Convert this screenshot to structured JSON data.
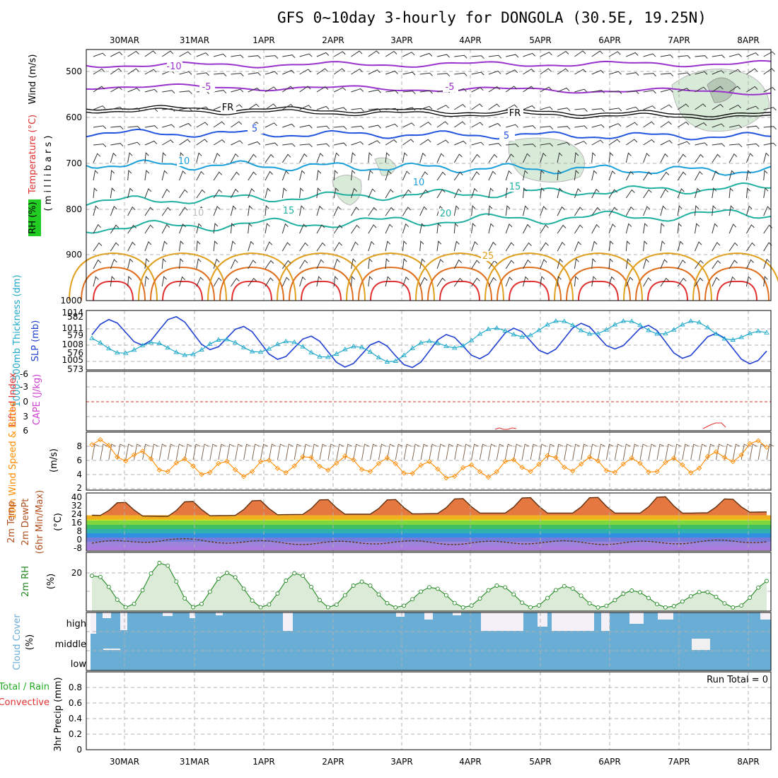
{
  "title": "GFS 0~10day 3-hourly for DONGOLA (30.5E, 19.25N)",
  "dates": [
    "30MAR",
    "31MAR",
    "1APR",
    "2APR",
    "3APR",
    "4APR",
    "5APR",
    "6APR",
    "7APR",
    "8APR"
  ],
  "colors": {
    "wind_label": "#e03030",
    "temp_label": "#e03030",
    "rh_box": "#22cc22",
    "thickness": "#22aacc",
    "slp": "#2040d0",
    "cape": "#d040d0",
    "lifted": "#e03030",
    "wind10_label": "#ff8c00",
    "temp2m": "#b05020",
    "rh2m": "#228822",
    "cloud": "#6aaed6",
    "precip_total": "#22aa22",
    "precip_conv": "#e03030"
  },
  "panels": {
    "upper": {
      "ylabel_wind": "Wind (m/s)",
      "ylabel_temp": "Temperature (°C)",
      "ylabel_rh": "RH (%)",
      "ylabel_pres": "( m i l l i b a r s )",
      "yticks": [
        "500",
        "600",
        "700",
        "800",
        "900",
        "1000"
      ],
      "contour_labels": [
        {
          "text": "-10",
          "color": "#9933cc"
        },
        {
          "text": "-5",
          "color": "#9933cc"
        },
        {
          "text": "-5",
          "color": "#9933cc"
        },
        {
          "text": "FR",
          "color": "#000000"
        },
        {
          "text": "FR",
          "color": "#000000"
        },
        {
          "text": "5",
          "color": "#2255dd"
        },
        {
          "text": "5",
          "color": "#2255dd"
        },
        {
          "text": "10",
          "color": "#1aa0d8"
        },
        {
          "text": "10",
          "color": "#1aa0d8"
        },
        {
          "text": "15",
          "color": "#20b0a0"
        },
        {
          "text": "15",
          "color": "#20b0a0"
        },
        {
          "text": "20",
          "color": "#20b0a0"
        },
        {
          "text": "25",
          "color": "#e0a020"
        },
        {
          "text": "10",
          "color": "#bbbbbb"
        }
      ]
    },
    "thickness": {
      "ylabel_thk": "1000-500mb Thickness (dm)",
      "ylabel_slp": "SLP (mb)",
      "yticks_thk": [
        "582",
        "579",
        "576",
        "573"
      ],
      "yticks_slp": [
        "1014",
        "1011",
        "1008",
        "1005"
      ]
    },
    "cape": {
      "ylabel_li": "Lifted Index",
      "ylabel_cape": "CAPE (J/kg)",
      "yticks": [
        "-6",
        "-3",
        "0",
        "3",
        "6"
      ]
    },
    "wind10": {
      "ylabel": "10m Wind Speed & Barbs",
      "yunit": "(m/s)",
      "yticks": [
        "8",
        "6",
        "4",
        "2"
      ]
    },
    "temp2m": {
      "ylabel1": "2m Temp",
      "ylabel2": "2m DewPt",
      "ylabel3": "(6hr Min/Max)",
      "yunit": "(°C)",
      "yticks": [
        "40",
        "32",
        "24",
        "16",
        "8",
        "0",
        "-8"
      ]
    },
    "rh2m": {
      "ylabel": "2m RH",
      "yunit": "(%)",
      "yticks": [
        "20"
      ]
    },
    "cloud": {
      "ylabel": "Cloud Cover",
      "yunit": "(%)",
      "ylevels": [
        "high",
        "middle",
        "low"
      ]
    },
    "precip": {
      "ylabel1": "Total / Rain",
      "ylabel2": "Convective",
      "ylabel3": "3hr Precip (mm)",
      "yticks": [
        "0.8",
        "0.6",
        "0.4",
        "0.2",
        "0"
      ],
      "run_total": "Run Total = 0"
    }
  },
  "chart_data": [
    {
      "type": "line",
      "title": "SLP (mb) and 1000-500mb Thickness (dm)",
      "x": [
        "30MAR",
        "31MAR",
        "1APR",
        "2APR",
        "3APR",
        "4APR",
        "5APR",
        "6APR",
        "7APR",
        "8APR"
      ],
      "series": [
        {
          "name": "SLP (mb)",
          "values": [
            1010,
            1011,
            1009,
            1007,
            1006,
            1008,
            1009,
            1010,
            1008,
            1007
          ]
        },
        {
          "name": "1000-500mb Thickness (dm)",
          "values": [
            577,
            576,
            577,
            576,
            575,
            578,
            580,
            580,
            580,
            578
          ]
        }
      ],
      "ylim": [
        1004,
        1014
      ]
    },
    {
      "type": "line",
      "title": "10m Wind Speed (m/s)",
      "x": [
        "30MAR",
        "31MAR",
        "1APR",
        "2APR",
        "3APR",
        "4APR",
        "5APR",
        "6APR",
        "7APR",
        "8APR"
      ],
      "series": [
        {
          "name": "10m Wind Speed",
          "values": [
            8,
            5,
            4.5,
            5.5,
            5,
            4,
            5.5,
            5,
            5,
            8
          ]
        }
      ],
      "ylim": [
        2,
        10
      ]
    },
    {
      "type": "line",
      "title": "2m Temp (°C)",
      "x": [
        "30MAR",
        "31MAR",
        "1APR",
        "2APR",
        "3APR",
        "4APR",
        "5APR",
        "6APR",
        "7APR",
        "8APR"
      ],
      "series": [
        {
          "name": "2m Temp max",
          "values": [
            34,
            35,
            36,
            37,
            37,
            38,
            39,
            39,
            40,
            35
          ]
        },
        {
          "name": "2m Temp min",
          "values": [
            22,
            21,
            22,
            23,
            23,
            24,
            24,
            24,
            24,
            25
          ]
        },
        {
          "name": "2m DewPt",
          "values": [
            -3,
            0,
            -2,
            -3,
            -2,
            -3,
            -2,
            -3,
            -2,
            -1
          ]
        }
      ],
      "ylim": [
        -10,
        42
      ]
    },
    {
      "type": "line",
      "title": "2m RH (%)",
      "x": [
        "30MAR",
        "31MAR",
        "1APR",
        "2APR",
        "3APR",
        "4APR",
        "5APR",
        "6APR",
        "7APR",
        "8APR"
      ],
      "series": [
        {
          "name": "2m RH",
          "values": [
            20,
            28,
            20,
            22,
            13,
            14,
            15,
            12,
            10,
            17
          ]
        }
      ],
      "ylim": [
        0,
        33
      ]
    },
    {
      "type": "bar",
      "title": "3hr Precip (mm)",
      "categories": [
        "30MAR",
        "31MAR",
        "1APR",
        "2APR",
        "3APR",
        "4APR",
        "5APR",
        "6APR",
        "7APR",
        "8APR"
      ],
      "values": [
        0,
        0,
        0,
        0,
        0,
        0,
        0,
        0,
        0,
        0
      ],
      "ylim": [
        0,
        1
      ]
    }
  ]
}
